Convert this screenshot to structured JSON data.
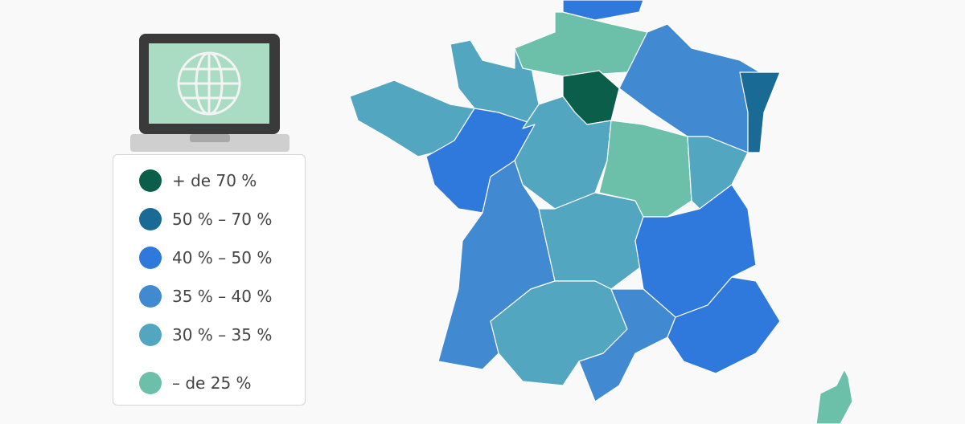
{
  "legend": {
    "items": [
      {
        "label": "+ de 70 %",
        "color": "#0b5e4a"
      },
      {
        "label": "50 % – 70 %",
        "color": "#1a6a96"
      },
      {
        "label": "40 % – 50 %",
        "color": "#2f78dc"
      },
      {
        "label": "35 % – 40 %",
        "color": "#4189d0"
      },
      {
        "label": "30 % – 35 %",
        "color": "#52a6bf"
      },
      {
        "label": "– de 25 %",
        "color": "#6cc0aa"
      }
    ]
  },
  "map": {
    "regions": [
      {
        "color": "#52a6bf"
      },
      {
        "color": "#52a6bf"
      },
      {
        "color": "#6cc0aa"
      },
      {
        "color": "#2f78dc"
      },
      {
        "color": "#0b5e4a"
      },
      {
        "color": "#4189d0"
      },
      {
        "color": "#1a6a96"
      },
      {
        "color": "#2f78dc"
      },
      {
        "color": "#52a6bf"
      },
      {
        "color": "#6cc0aa"
      },
      {
        "color": "#52a6bf"
      },
      {
        "color": "#4189d0"
      },
      {
        "color": "#52a6bf"
      },
      {
        "color": "#2f78dc"
      },
      {
        "color": "#52a6bf"
      },
      {
        "color": "#4189d0"
      },
      {
        "color": "#2f78dc"
      },
      {
        "color": "#6cc0aa"
      }
    ]
  }
}
